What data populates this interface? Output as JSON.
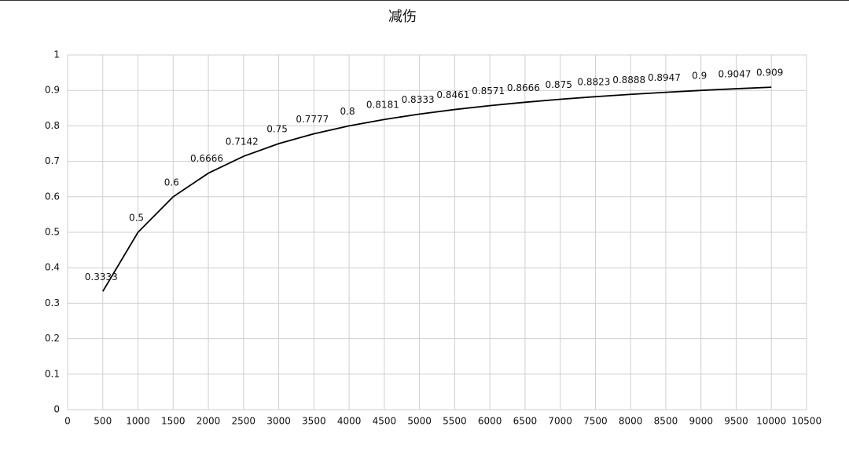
{
  "chart_data": {
    "type": "line",
    "title": "减伤",
    "x": [
      500,
      1000,
      1500,
      2000,
      2500,
      3000,
      3500,
      4000,
      4500,
      5000,
      5500,
      6000,
      6500,
      7000,
      7500,
      8000,
      8500,
      9000,
      9500,
      10000
    ],
    "values": [
      0.3333,
      0.5,
      0.6,
      0.6666,
      0.7142,
      0.75,
      0.7777,
      0.8,
      0.8181,
      0.8333,
      0.8461,
      0.8571,
      0.8666,
      0.875,
      0.8823,
      0.8888,
      0.8947,
      0.9,
      0.9047,
      0.909
    ],
    "color": "#000000",
    "xlim": [
      0,
      10500
    ],
    "xticks": [
      0,
      500,
      1000,
      1500,
      2000,
      2500,
      3000,
      3500,
      4000,
      4500,
      5000,
      5500,
      6000,
      6500,
      7000,
      7500,
      8000,
      8500,
      9000,
      9500,
      10000,
      10500
    ],
    "ylim": [
      0,
      1
    ],
    "yticks": [
      0,
      0.1,
      0.2,
      0.3,
      0.4,
      0.5,
      0.6,
      0.7,
      0.8,
      0.9,
      1
    ],
    "grid": true
  }
}
